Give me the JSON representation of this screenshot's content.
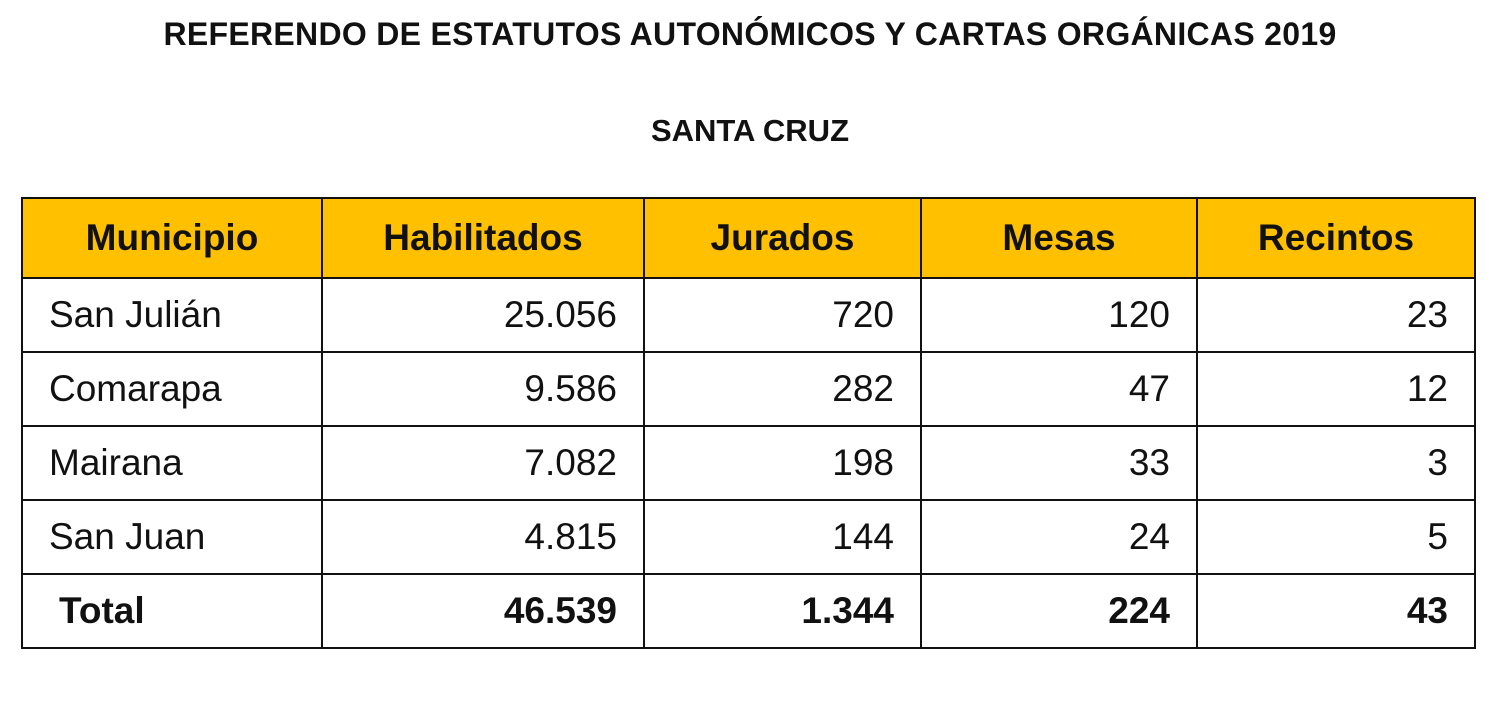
{
  "header": {
    "title": "REFERENDO DE ESTATUTOS AUTONÓMICOS Y CARTAS ORGÁNICAS 2019",
    "subtitle": "SANTA CRUZ"
  },
  "table": {
    "header_color": "#ffc000",
    "columns": [
      "Municipio",
      "Habilitados",
      "Jurados",
      "Mesas",
      "Recintos"
    ],
    "rows": [
      [
        "San Julián",
        "25.056",
        "720",
        "120",
        "23"
      ],
      [
        "Comarapa",
        "9.586",
        "282",
        "47",
        "12"
      ],
      [
        "Mairana",
        "7.082",
        "198",
        "33",
        "3"
      ],
      [
        "San Juan",
        "4.815",
        "144",
        "24",
        "5"
      ]
    ],
    "total": [
      "Total",
      "46.539",
      "1.344",
      "224",
      "43"
    ]
  }
}
